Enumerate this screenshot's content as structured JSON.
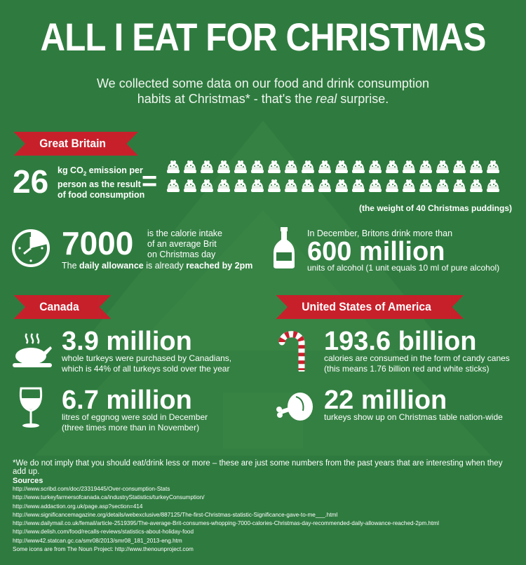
{
  "title": "ALL I EAT FOR CHRISTMAS",
  "subtitle_line1": "We collected some data on our food and drink consumption",
  "subtitle_line2_pre": "habits at Christmas* - that's the ",
  "subtitle_line2_em": "real",
  "subtitle_line2_post": " surprise.",
  "gb": {
    "label": "Great Britain",
    "co2_value": "26",
    "co2_text_1": "kg CO",
    "co2_sub": "2",
    "co2_text_2": " emission per",
    "co2_text_3": "person as the result",
    "co2_text_4": "of food consumption",
    "equals": "=",
    "pudding_count": 40,
    "pudding_caption": "(the weight of 40 Christmas puddings)",
    "calorie_value": "7000",
    "calorie_text_1": "is the calorie intake",
    "calorie_text_2": "of an average Brit",
    "calorie_text_3": "on Christmas day",
    "calorie_note_1": "The ",
    "calorie_note_b1": "daily allowance",
    "calorie_note_2": " is already ",
    "calorie_note_b2": "reached by 2pm",
    "alcohol_intro": "In December, Britons drink more than",
    "alcohol_value": "600 million",
    "alcohol_text": "units of alcohol (1 unit equals 10 ml of pure alcohol)"
  },
  "canada": {
    "label": "Canada",
    "turkey_value": "3.9 million",
    "turkey_text_1": "whole turkeys were purchased by Canadians,",
    "turkey_text_2": "which is 44% of all turkeys sold over the year",
    "eggnog_value": "6.7 million",
    "eggnog_text_1": "litres of eggnog were sold in December",
    "eggnog_text_2": "(three times more than in November)"
  },
  "usa": {
    "label": "United States of America",
    "candy_value": "193.6 billion",
    "candy_text_1": "calories are consumed in the form of candy canes",
    "candy_text_2": "(this means 1.76 billion red and white sticks)",
    "turkey_value": "22 million",
    "turkey_text": "turkeys show up on Christmas table nation-wide"
  },
  "footnote": "*We do not imply that you should eat/drink less or more – these are just some numbers from the past years that are interesting when they add up.",
  "sources_title": "Sources",
  "sources": [
    "http://www.scribd.com/doc/23319445/Over-consumption-Stats",
    "http://www.turkeyfarmersofcanada.ca/industryStatistics/turkeyConsumption/",
    "http://www.addaction.org.uk/page.asp?section=414",
    "http://www.significancemagazine.org/details/webexclusive/887125/The-first-Christmas-statistic-Significance-gave-to-me___.html",
    "http://www.dailymail.co.uk/femail/article-2519395/The-average-Brit-consumes-whopping-7000-calories-Christmas-day-recommended-daily-allowance-reached-2pm.html",
    "http://www.delish.com/food/recalls-reviews/statistics-about-holiday-food",
    "http://www42.statcan.gc.ca/smr08/2013/smr08_181_2013-eng.htm",
    "Some icons are from The Noun Project: http://www.thenounproject.com"
  ],
  "colors": {
    "background": "#2f7b3f",
    "ribbon": "#c8202b",
    "text": "#ffffff"
  }
}
